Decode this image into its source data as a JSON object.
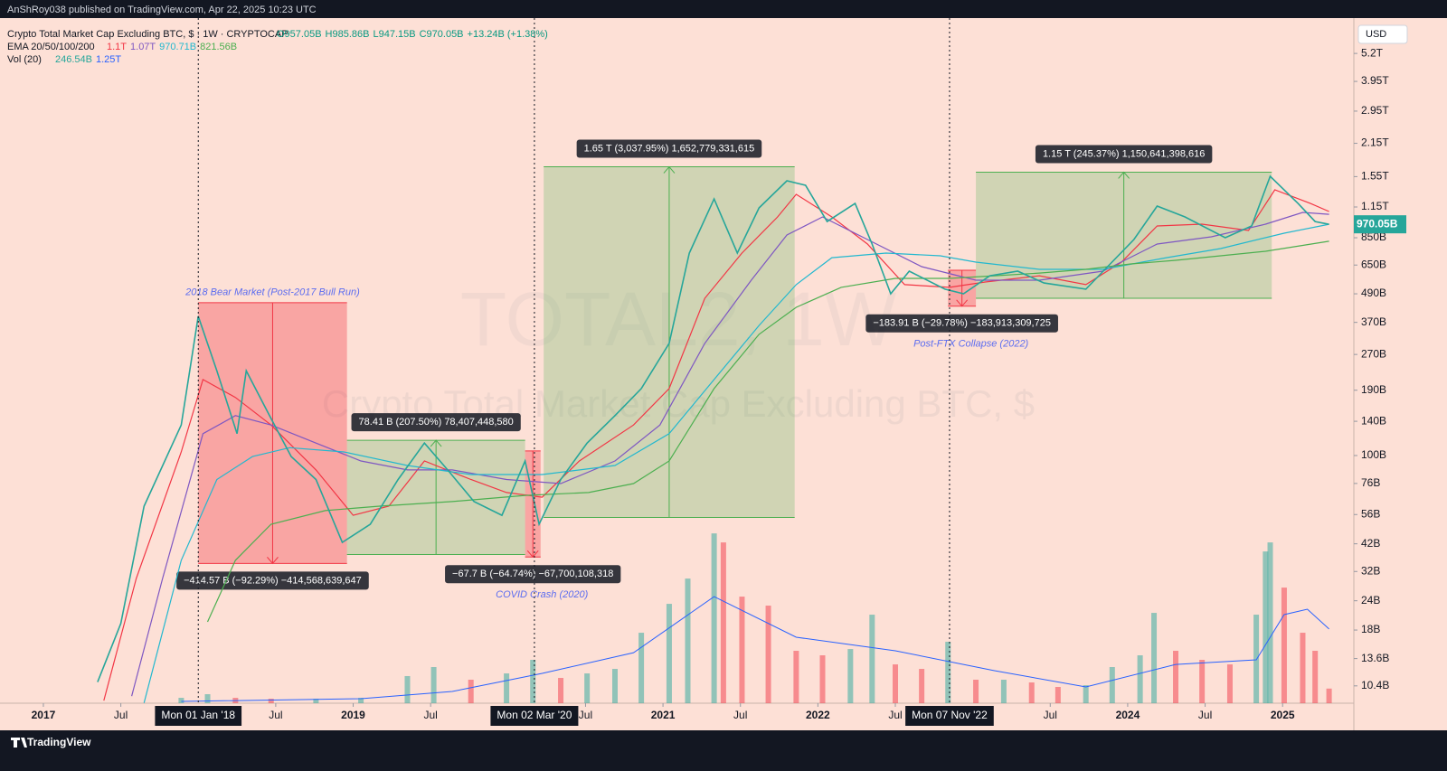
{
  "header": {
    "publisher": "AnShRoy038 published on TradingView.com, Apr 22, 2025 10:23 UTC"
  },
  "footer": {
    "brand": "TradingView"
  },
  "chart_data": {
    "type": "line",
    "title": "Crypto Total Market Cap Excluding BTC, $ · 1W · CRYPTOCAP",
    "ohlc": [
      "O957.05B",
      "H985.86B",
      "L947.15B",
      "C970.05B"
    ],
    "change": "+13.24B (+1.38%)",
    "ema_legend": {
      "title": "EMA 20/50/100/200",
      "labels": [
        "1.1T",
        "1.07T",
        "970.71B",
        "821.56B"
      ]
    },
    "vol_legend": {
      "title": "Vol (20)",
      "labels": [
        "246.54B",
        "1.25T"
      ]
    },
    "watermark": [
      "TOTAL2, 1W",
      "Crypto Total Market Cap Excluding BTC, $"
    ],
    "currency": "USD",
    "log_scale": true,
    "ylim": [
      8.77,
      7360
    ],
    "yticks": [
      {
        "value": 5200,
        "label": "5.2T"
      },
      {
        "value": 3950,
        "label": "3.95T"
      },
      {
        "value": 2950,
        "label": "2.95T"
      },
      {
        "value": 2150,
        "label": "2.15T"
      },
      {
        "value": 1550,
        "label": "1.55T"
      },
      {
        "value": 1150,
        "label": "1.15T"
      },
      {
        "value": 850,
        "label": "850B"
      },
      {
        "value": 650,
        "label": "650B"
      },
      {
        "value": 490,
        "label": "490B"
      },
      {
        "value": 370,
        "label": "370B"
      },
      {
        "value": 270,
        "label": "270B"
      },
      {
        "value": 190,
        "label": "190B"
      },
      {
        "value": 140,
        "label": "140B"
      },
      {
        "value": 100,
        "label": "100B"
      },
      {
        "value": 76,
        "label": "76B"
      },
      {
        "value": 56,
        "label": "56B"
      },
      {
        "value": 42,
        "label": "42B"
      },
      {
        "value": 32,
        "label": "32B"
      },
      {
        "value": 24,
        "label": "24B"
      },
      {
        "value": 18,
        "label": "18B"
      },
      {
        "value": 13.6,
        "label": "13.6B"
      },
      {
        "value": 10.4,
        "label": "10.4B"
      }
    ],
    "xlim": [
      2016.72,
      2025.46
    ],
    "xticks": [
      2017,
      {
        "value": 2017.5,
        "label": "Jul"
      },
      {
        "value": 2018.5,
        "label": "Jul"
      },
      2019,
      {
        "value": 2019.5,
        "label": "Jul"
      },
      {
        "value": 2020.5,
        "label": "Jul"
      },
      2021,
      {
        "value": 2021.5,
        "label": "Jul"
      },
      2022,
      {
        "value": 2022.5,
        "label": "Jul"
      },
      {
        "value": 2023.5,
        "label": "Jul"
      },
      2024,
      {
        "value": 2024.5,
        "label": "Jul"
      },
      2025
    ],
    "markers": [
      {
        "x": 2018.0,
        "label": "Mon 01 Jan '18"
      },
      {
        "x": 2020.17,
        "label": "Mon 02 Mar '20"
      },
      {
        "x": 2022.85,
        "label": "Mon 07 Nov '22"
      }
    ],
    "last_price": {
      "value": 970.05,
      "label": "970.05B",
      "color": "#26a69a"
    },
    "price": {
      "color": "#26a69a",
      "x": [
        2017.35,
        2017.5,
        2017.65,
        2017.89,
        2018.0,
        2018.12,
        2018.25,
        2018.31,
        2018.46,
        2018.6,
        2018.76,
        2018.93,
        2019.11,
        2019.29,
        2019.46,
        2019.61,
        2019.78,
        2019.96,
        2020.11,
        2020.2,
        2020.34,
        2020.51,
        2020.69,
        2020.86,
        2021.04,
        2021.17,
        2021.33,
        2021.48,
        2021.62,
        2021.8,
        2021.92,
        2022.06,
        2022.24,
        2022.35,
        2022.47,
        2022.59,
        2022.82,
        2022.94,
        2023.11,
        2023.29,
        2023.46,
        2023.73,
        2023.87,
        2024.04,
        2024.19,
        2024.37,
        2024.63,
        2024.8,
        2024.92,
        2025.1,
        2025.21,
        2025.3
      ],
      "values": [
        10.8,
        19.2,
        60.8,
        135,
        393,
        230,
        124,
        230,
        148,
        99,
        79,
        42.6,
        50.9,
        79,
        113,
        86.8,
        63.6,
        55.6,
        94.8,
        50.9,
        79,
        113,
        148,
        193,
        301,
        731,
        1245,
        731,
        1140,
        1488,
        1423,
        997,
        1191,
        799,
        490,
        612,
        513,
        490,
        585,
        612,
        545,
        513,
        640,
        835,
        1160,
        1043,
        850,
        954,
        1555,
        1191,
        997,
        970.05
      ]
    },
    "emas": [
      {
        "color": "#f23645",
        "x": [
          2017.39,
          2017.6,
          2017.89,
          2018.03,
          2018.24,
          2018.47,
          2018.76,
          2019.0,
          2019.23,
          2019.46,
          2019.76,
          2019.99,
          2020.22,
          2020.46,
          2020.81,
          2021.04,
          2021.27,
          2021.51,
          2021.74,
          2021.86,
          2022.09,
          2022.32,
          2022.56,
          2022.85,
          2023.08,
          2023.43,
          2023.73,
          2023.96,
          2024.19,
          2024.48,
          2024.78,
          2024.95,
          2025.18,
          2025.3
        ],
        "values": [
          9.0,
          29.9,
          103.6,
          211,
          177,
          135,
          86.8,
          55.6,
          60.8,
          94.8,
          79,
          69.5,
          66.4,
          94.8,
          135,
          193,
          469,
          731,
          1043,
          1302,
          1043,
          799,
          536,
          522,
          550,
          585,
          536,
          669,
          954,
          971,
          913,
          1361,
          1191,
          1100
        ]
      },
      {
        "color": "#7e57c2",
        "x": [
          2017.57,
          2017.77,
          2018.03,
          2018.24,
          2018.47,
          2018.76,
          2019.05,
          2019.35,
          2019.64,
          2019.99,
          2020.34,
          2020.69,
          2020.98,
          2021.27,
          2021.57,
          2021.8,
          2022.03,
          2022.32,
          2022.67,
          2023.02,
          2023.43,
          2023.84,
          2024.19,
          2024.54,
          2024.89,
          2025.13,
          2025.3
        ],
        "values": [
          9.4,
          29.9,
          124,
          148,
          135,
          113,
          94.8,
          86.8,
          86.8,
          79,
          75.9,
          94.8,
          135,
          301,
          560,
          873,
          1043,
          835,
          640,
          560,
          560,
          612,
          799,
          858,
          971,
          1090,
          1070
        ]
      },
      {
        "color": "#22b8cf",
        "x": [
          2017.65,
          2017.89,
          2018.12,
          2018.35,
          2018.59,
          2018.94,
          2019.35,
          2019.76,
          2020.22,
          2020.69,
          2021.04,
          2021.33,
          2021.62,
          2021.86,
          2022.09,
          2022.44,
          2022.79,
          2023.02,
          2023.43,
          2023.84,
          2024.25,
          2024.6,
          2025.01,
          2025.3
        ],
        "values": [
          8.8,
          35.7,
          79,
          99,
          108,
          103.6,
          90.7,
          83.0,
          83.0,
          90.7,
          124,
          211,
          359,
          536,
          699,
          731,
          712,
          669,
          623,
          623,
          699,
          764,
          889,
          970.71
        ]
      },
      {
        "color": "#4caf50",
        "x": [
          2018.06,
          2018.24,
          2018.47,
          2018.82,
          2019.17,
          2019.64,
          2020.11,
          2020.52,
          2020.81,
          2021.04,
          2021.33,
          2021.62,
          2021.86,
          2022.15,
          2022.5,
          2022.85,
          2023.14,
          2023.43,
          2023.73,
          2024.02,
          2024.31,
          2024.6,
          2024.89,
          2025.3
        ],
        "values": [
          19.5,
          35.7,
          50.9,
          58.2,
          60.8,
          63.6,
          67.6,
          69.5,
          75.9,
          94.8,
          193,
          329,
          429,
          522,
          570,
          570,
          585,
          601,
          623,
          657,
          681,
          712,
          744,
          821.56
        ]
      }
    ],
    "volume": {
      "vlim": [
        0,
        3000
      ],
      "up_color": "rgba(38,166,154,0.5)",
      "down_color": "rgba(242,54,69,0.5)",
      "x": [
        2017.89,
        2018.06,
        2018.24,
        2018.47,
        2018.76,
        2019.05,
        2019.35,
        2019.52,
        2019.76,
        2019.99,
        2020.16,
        2020.34,
        2020.51,
        2020.69,
        2020.86,
        2021.04,
        2021.16,
        2021.33,
        2021.39,
        2021.51,
        2021.68,
        2021.86,
        2022.03,
        2022.21,
        2022.35,
        2022.5,
        2022.67,
        2022.84,
        2023.02,
        2023.2,
        2023.38,
        2023.55,
        2023.73,
        2023.9,
        2024.08,
        2024.17,
        2024.31,
        2024.48,
        2024.66,
        2024.83,
        2024.89,
        2024.92,
        2025.01,
        2025.13,
        2025.21,
        2025.3
      ],
      "values": [
        91,
        152,
        91,
        76,
        76,
        91,
        457,
        609,
        396,
        502,
        731,
        426,
        502,
        578,
        1187,
        1674,
        2100,
        2861,
        2709,
        1796,
        1644,
        883,
        807,
        913,
        1492,
        654,
        578,
        1035,
        396,
        396,
        350,
        274,
        304,
        609,
        807,
        1522,
        883,
        731,
        654,
        1492,
        2557,
        2709,
        1948,
        1187,
        883,
        246.54
      ]
    },
    "volume_ma": {
      "color": "#2962ff",
      "x": [
        2017.89,
        2019.05,
        2019.64,
        2020.22,
        2020.81,
        2021.33,
        2021.86,
        2022.5,
        2023.14,
        2023.73,
        2024.31,
        2024.83,
        2025.01,
        2025.16,
        2025.3
      ],
      "values": [
        30,
        76,
        198,
        502,
        852,
        1796,
        1111,
        883,
        548,
        274,
        654,
        731,
        1492,
        1583,
        1250
      ]
    },
    "measures": [
      {
        "x": [
          2018.0,
          2018.96
        ],
        "values": [
          449.2,
          34.63
        ],
        "label": "−414.57 B (−92.29%) −414,568,639,647",
        "note": "2018 Bear Market (Post-2017 Bull Run)"
      },
      {
        "x": [
          2018.96,
          2020.11
        ],
        "values": [
          37.79,
          116.2
        ],
        "label": "78.41 B (207.50%) 78,407,448,580"
      },
      {
        "x": [
          2020.11,
          2020.21
        ],
        "values": [
          104.6,
          36.9
        ],
        "label": "−67.7 B (−64.74%) −67,700,108,318",
        "note": "COVID Crash (2020)"
      },
      {
        "x": [
          2020.23,
          2021.85
        ],
        "values": [
          54.4,
          1707.2
        ],
        "label": "1.65 T (3,037.95%) 1,652,779,331,615"
      },
      {
        "x": [
          2022.84,
          2023.02
        ],
        "values": [
          617.6,
          433.7
        ],
        "label": "−183.91 B (−29.78%) −183,913,309,725",
        "note": "Post-FTX Collapse (2022)"
      },
      {
        "x": [
          2023.02,
          2024.93
        ],
        "values": [
          468.9,
          1619.5
        ],
        "label": "1.15 T (245.37%) 1,150,641,398,616"
      }
    ]
  }
}
